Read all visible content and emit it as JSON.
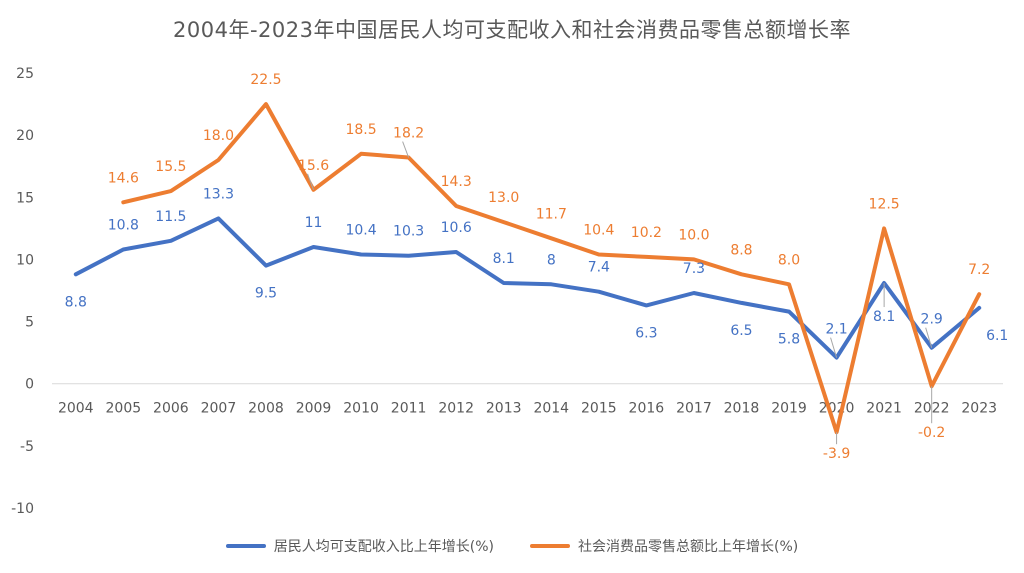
{
  "chart_data": {
    "type": "line",
    "title": "2004年-2023年中国居民人均可支配收入和社会消费品零售总额增长率",
    "categories": [
      "2004",
      "2005",
      "2006",
      "2007",
      "2008",
      "2009",
      "2010",
      "2011",
      "2012",
      "2013",
      "2014",
      "2015",
      "2016",
      "2017",
      "2018",
      "2019",
      "2020",
      "2021",
      "2022",
      "2023"
    ],
    "ylim": [
      -10,
      25
    ],
    "yticks": [
      "25",
      "20",
      "15",
      "10",
      "5",
      "0",
      "-5",
      "-10"
    ],
    "grid": false,
    "legend_position": "bottom",
    "series": [
      {
        "name": "居民人均可支配收入比上年增长(%)",
        "color": "#4472C4",
        "values": [
          8.8,
          10.8,
          11.5,
          13.3,
          9.5,
          11,
          10.4,
          10.3,
          10.6,
          8.1,
          8,
          7.4,
          6.3,
          7.3,
          6.5,
          5.8,
          2.1,
          8.1,
          2.9,
          6.1
        ],
        "labels": [
          "8.8",
          "10.8",
          "11.5",
          "13.3",
          "9.5",
          "11",
          "10.4",
          "10.3",
          "10.6",
          "8.1",
          "8",
          "7.4",
          "6.3",
          "7.3",
          "6.5",
          "5.8",
          "2.1",
          "8.1",
          "2.9",
          "6.1"
        ]
      },
      {
        "name": "社会消费品零售总额比上年增长(%)",
        "color": "#ED7D31",
        "values": [
          null,
          14.6,
          15.5,
          18.0,
          22.5,
          15.6,
          18.5,
          18.2,
          14.3,
          13.0,
          11.7,
          10.4,
          10.2,
          10.0,
          8.8,
          8.0,
          -3.9,
          12.5,
          -0.2,
          7.2
        ],
        "labels": [
          "",
          "14.6",
          "15.5",
          "18.0",
          "22.5",
          "15.6",
          "18.5",
          "18.2",
          "14.3",
          "13.0",
          "11.7",
          "10.4",
          "10.2",
          "10.0",
          "8.8",
          "8.0",
          "-3.9",
          "12.5",
          "-0.2",
          "7.2"
        ]
      }
    ]
  }
}
